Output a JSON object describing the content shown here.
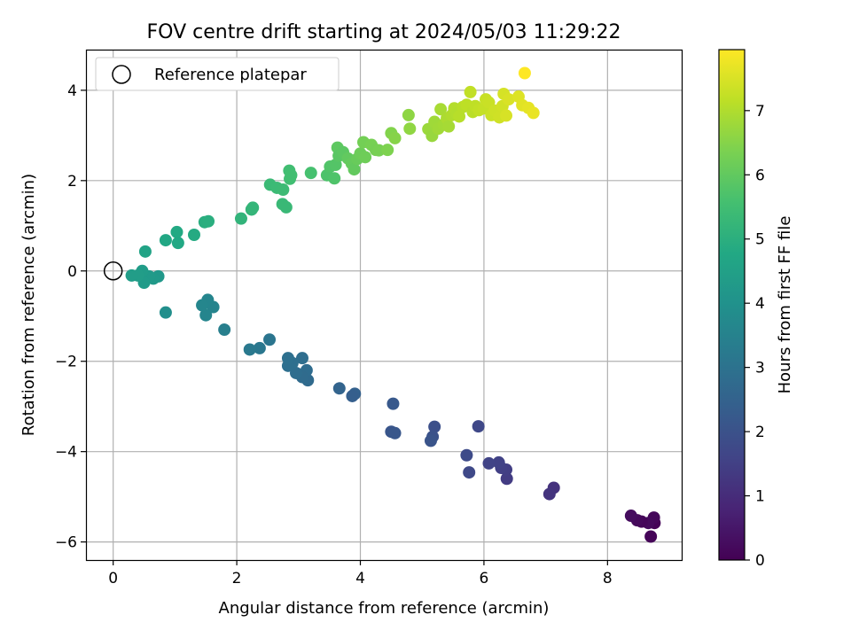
{
  "chart_data": {
    "type": "scatter",
    "title": "FOV centre drift starting at 2024/05/03 11:29:22",
    "xlabel": "Angular distance from reference (arcmin)",
    "ylabel": "Rotation from reference (arcmin)",
    "xlim": [
      -0.44,
      9.2
    ],
    "ylim": [
      -6.4,
      4.9
    ],
    "xticks": [
      0,
      2,
      4,
      6,
      8
    ],
    "yticks": [
      -6,
      -4,
      -2,
      0,
      2,
      4
    ],
    "xtick_labels": [
      "0",
      "2",
      "4",
      "6",
      "8"
    ],
    "ytick_labels": [
      "−6",
      "−4",
      "−2",
      "0",
      "2",
      "4"
    ],
    "grid": true,
    "legend": {
      "placement": "top-left",
      "entries": [
        "Reference platepar"
      ]
    },
    "reference_point": {
      "x": 0,
      "y": 0
    },
    "colorbar": {
      "label": "Hours from first FF file",
      "range": [
        0,
        7.95
      ],
      "ticks": [
        0,
        1,
        2,
        3,
        4,
        5,
        6,
        7
      ],
      "tick_labels": [
        "0",
        "1",
        "2",
        "3",
        "4",
        "5",
        "6",
        "7"
      ],
      "colormap": "viridis"
    },
    "points": [
      {
        "x": 8.7,
        "y": -5.88,
        "c": 0.1
      },
      {
        "x": 8.76,
        "y": -5.58,
        "c": 0.05
      },
      {
        "x": 8.75,
        "y": -5.46,
        "c": 0.15
      },
      {
        "x": 8.66,
        "y": -5.58,
        "c": 0.2
      },
      {
        "x": 8.55,
        "y": -5.55,
        "c": 0.12
      },
      {
        "x": 8.48,
        "y": -5.52,
        "c": 0.18
      },
      {
        "x": 8.38,
        "y": -5.42,
        "c": 0.25
      },
      {
        "x": 7.13,
        "y": -4.8,
        "c": 1.15
      },
      {
        "x": 7.06,
        "y": -4.94,
        "c": 1.2
      },
      {
        "x": 6.37,
        "y": -4.6,
        "c": 1.4
      },
      {
        "x": 6.36,
        "y": -4.4,
        "c": 1.45
      },
      {
        "x": 6.28,
        "y": -4.36,
        "c": 1.5
      },
      {
        "x": 6.24,
        "y": -4.24,
        "c": 1.55
      },
      {
        "x": 6.08,
        "y": -4.26,
        "c": 1.6
      },
      {
        "x": 5.91,
        "y": -3.44,
        "c": 1.7
      },
      {
        "x": 5.72,
        "y": -4.08,
        "c": 1.8
      },
      {
        "x": 5.76,
        "y": -4.46,
        "c": 1.75
      },
      {
        "x": 5.2,
        "y": -3.45,
        "c": 1.95
      },
      {
        "x": 5.17,
        "y": -3.67,
        "c": 2.0
      },
      {
        "x": 5.14,
        "y": -3.76,
        "c": 2.05
      },
      {
        "x": 4.53,
        "y": -2.94,
        "c": 2.2
      },
      {
        "x": 4.5,
        "y": -3.56,
        "c": 2.1
      },
      {
        "x": 4.56,
        "y": -3.59,
        "c": 2.15
      },
      {
        "x": 3.91,
        "y": -2.72,
        "c": 2.45
      },
      {
        "x": 3.87,
        "y": -2.77,
        "c": 2.4
      },
      {
        "x": 3.66,
        "y": -2.6,
        "c": 2.55
      },
      {
        "x": 3.15,
        "y": -2.42,
        "c": 2.75
      },
      {
        "x": 3.13,
        "y": -2.2,
        "c": 2.8
      },
      {
        "x": 3.06,
        "y": -2.35,
        "c": 2.78
      },
      {
        "x": 3.06,
        "y": -1.93,
        "c": 2.85
      },
      {
        "x": 2.96,
        "y": -2.26,
        "c": 2.82
      },
      {
        "x": 2.9,
        "y": -2.04,
        "c": 2.88
      },
      {
        "x": 2.83,
        "y": -2.1,
        "c": 2.9
      },
      {
        "x": 2.83,
        "y": -1.93,
        "c": 2.92
      },
      {
        "x": 2.53,
        "y": -1.52,
        "c": 3.1
      },
      {
        "x": 2.37,
        "y": -1.71,
        "c": 3.15
      },
      {
        "x": 2.21,
        "y": -1.74,
        "c": 3.2
      },
      {
        "x": 1.8,
        "y": -1.3,
        "c": 3.4
      },
      {
        "x": 1.62,
        "y": -0.8,
        "c": 3.55
      },
      {
        "x": 1.53,
        "y": -0.64,
        "c": 3.6
      },
      {
        "x": 1.5,
        "y": -0.98,
        "c": 3.58
      },
      {
        "x": 1.44,
        "y": -0.76,
        "c": 3.62
      },
      {
        "x": 0.85,
        "y": -0.92,
        "c": 3.9
      },
      {
        "x": 0.73,
        "y": -0.12,
        "c": 4.2
      },
      {
        "x": 0.65,
        "y": -0.17,
        "c": 4.25
      },
      {
        "x": 0.58,
        "y": -0.12,
        "c": 4.3
      },
      {
        "x": 0.5,
        "y": -0.26,
        "c": 4.32
      },
      {
        "x": 0.47,
        "y": 0.0,
        "c": 4.35
      },
      {
        "x": 0.4,
        "y": -0.1,
        "c": 4.38
      },
      {
        "x": 0.3,
        "y": -0.1,
        "c": 4.4
      },
      {
        "x": 0.52,
        "y": 0.43,
        "c": 4.6
      },
      {
        "x": 0.85,
        "y": 0.68,
        "c": 4.75
      },
      {
        "x": 1.03,
        "y": 0.86,
        "c": 4.8
      },
      {
        "x": 1.05,
        "y": 0.62,
        "c": 4.78
      },
      {
        "x": 1.31,
        "y": 0.8,
        "c": 4.85
      },
      {
        "x": 1.48,
        "y": 1.08,
        "c": 4.95
      },
      {
        "x": 1.54,
        "y": 1.1,
        "c": 4.98
      },
      {
        "x": 2.07,
        "y": 1.16,
        "c": 5.15
      },
      {
        "x": 2.24,
        "y": 1.36,
        "c": 5.2
      },
      {
        "x": 2.26,
        "y": 1.4,
        "c": 5.22
      },
      {
        "x": 2.54,
        "y": 1.91,
        "c": 5.35
      },
      {
        "x": 2.65,
        "y": 1.84,
        "c": 5.38
      },
      {
        "x": 2.75,
        "y": 1.8,
        "c": 5.4
      },
      {
        "x": 2.74,
        "y": 1.48,
        "c": 5.32
      },
      {
        "x": 2.8,
        "y": 1.41,
        "c": 5.34
      },
      {
        "x": 2.85,
        "y": 2.22,
        "c": 5.5
      },
      {
        "x": 2.86,
        "y": 2.04,
        "c": 5.48
      },
      {
        "x": 2.88,
        "y": 2.12,
        "c": 5.52
      },
      {
        "x": 3.2,
        "y": 2.17,
        "c": 5.6
      },
      {
        "x": 3.46,
        "y": 2.12,
        "c": 5.7
      },
      {
        "x": 3.51,
        "y": 2.31,
        "c": 5.75
      },
      {
        "x": 3.58,
        "y": 2.05,
        "c": 5.72
      },
      {
        "x": 3.6,
        "y": 2.35,
        "c": 5.8
      },
      {
        "x": 3.63,
        "y": 2.73,
        "c": 5.95
      },
      {
        "x": 3.65,
        "y": 2.55,
        "c": 5.88
      },
      {
        "x": 3.72,
        "y": 2.63,
        "c": 5.92
      },
      {
        "x": 3.8,
        "y": 2.49,
        "c": 6.0
      },
      {
        "x": 3.86,
        "y": 2.38,
        "c": 6.05
      },
      {
        "x": 3.9,
        "y": 2.25,
        "c": 6.02
      },
      {
        "x": 3.95,
        "y": 2.48,
        "c": 6.1
      },
      {
        "x": 4.0,
        "y": 2.6,
        "c": 6.15
      },
      {
        "x": 4.05,
        "y": 2.85,
        "c": 6.25
      },
      {
        "x": 4.08,
        "y": 2.52,
        "c": 6.18
      },
      {
        "x": 4.18,
        "y": 2.79,
        "c": 6.3
      },
      {
        "x": 4.25,
        "y": 2.68,
        "c": 6.28
      },
      {
        "x": 4.3,
        "y": 2.67,
        "c": 6.32
      },
      {
        "x": 4.44,
        "y": 2.68,
        "c": 6.4
      },
      {
        "x": 4.5,
        "y": 3.05,
        "c": 6.45
      },
      {
        "x": 4.56,
        "y": 2.94,
        "c": 6.5
      },
      {
        "x": 4.78,
        "y": 3.45,
        "c": 6.6
      },
      {
        "x": 4.8,
        "y": 3.15,
        "c": 6.62
      },
      {
        "x": 5.1,
        "y": 3.14,
        "c": 6.75
      },
      {
        "x": 5.16,
        "y": 2.99,
        "c": 6.72
      },
      {
        "x": 5.2,
        "y": 3.3,
        "c": 6.8
      },
      {
        "x": 5.26,
        "y": 3.15,
        "c": 6.82
      },
      {
        "x": 5.3,
        "y": 3.58,
        "c": 6.9
      },
      {
        "x": 5.35,
        "y": 3.24,
        "c": 6.85
      },
      {
        "x": 5.4,
        "y": 3.38,
        "c": 6.95
      },
      {
        "x": 5.43,
        "y": 3.2,
        "c": 6.88
      },
      {
        "x": 5.48,
        "y": 3.45,
        "c": 7.0
      },
      {
        "x": 5.52,
        "y": 3.6,
        "c": 7.05
      },
      {
        "x": 5.56,
        "y": 3.48,
        "c": 7.02
      },
      {
        "x": 5.6,
        "y": 3.42,
        "c": 7.08
      },
      {
        "x": 5.66,
        "y": 3.63,
        "c": 7.1
      },
      {
        "x": 5.72,
        "y": 3.68,
        "c": 7.15
      },
      {
        "x": 5.78,
        "y": 3.96,
        "c": 7.2
      },
      {
        "x": 5.82,
        "y": 3.52,
        "c": 7.12
      },
      {
        "x": 5.86,
        "y": 3.65,
        "c": 7.18
      },
      {
        "x": 5.92,
        "y": 3.56,
        "c": 7.22
      },
      {
        "x": 6.0,
        "y": 3.6,
        "c": 7.25
      },
      {
        "x": 6.03,
        "y": 3.8,
        "c": 7.28
      },
      {
        "x": 6.08,
        "y": 3.73,
        "c": 7.3
      },
      {
        "x": 6.12,
        "y": 3.45,
        "c": 7.32
      },
      {
        "x": 6.18,
        "y": 3.55,
        "c": 7.35
      },
      {
        "x": 6.25,
        "y": 3.4,
        "c": 7.38
      },
      {
        "x": 6.3,
        "y": 3.65,
        "c": 7.4
      },
      {
        "x": 6.32,
        "y": 3.92,
        "c": 7.45
      },
      {
        "x": 6.36,
        "y": 3.44,
        "c": 7.48
      },
      {
        "x": 6.4,
        "y": 3.8,
        "c": 7.5
      },
      {
        "x": 6.56,
        "y": 3.86,
        "c": 7.55
      },
      {
        "x": 6.62,
        "y": 3.67,
        "c": 7.6
      },
      {
        "x": 6.72,
        "y": 3.61,
        "c": 7.65
      },
      {
        "x": 6.8,
        "y": 3.5,
        "c": 7.7
      },
      {
        "x": 6.66,
        "y": 4.38,
        "c": 7.95
      }
    ]
  }
}
